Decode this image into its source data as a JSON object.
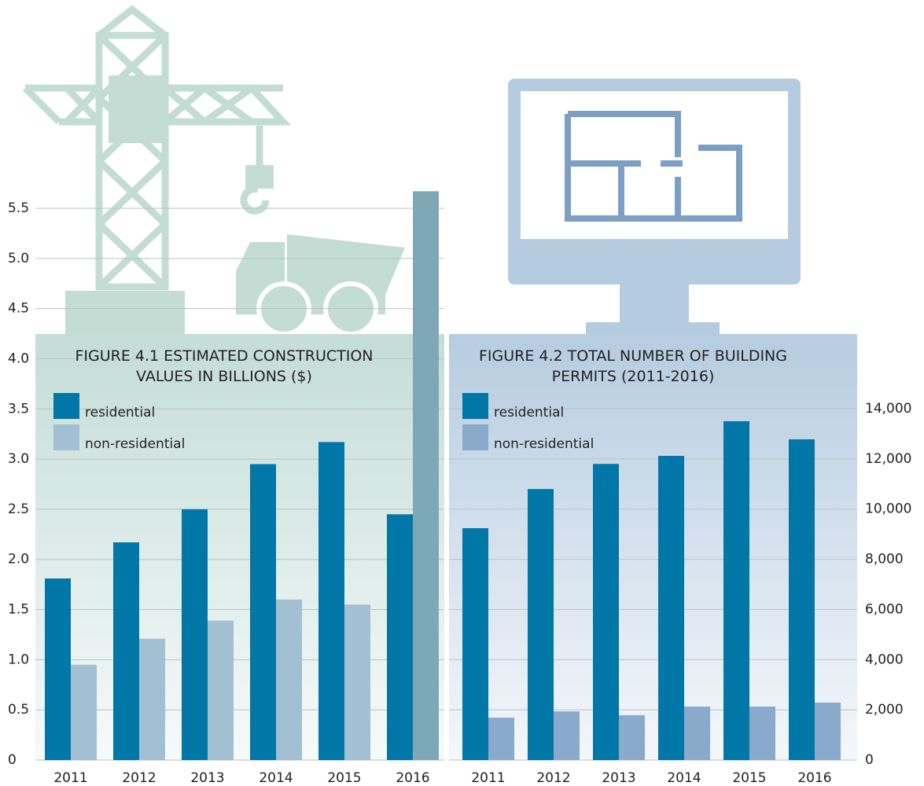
{
  "chart_data": [
    {
      "type": "bar",
      "title": "FIGURE 4.1 ESTIMATED CONSTRUCTION VALUES IN BILLIONS ($)",
      "categories": [
        "2011",
        "2012",
        "2013",
        "2014",
        "2015",
        "2016"
      ],
      "series": [
        {
          "name": "residential",
          "color": "#0077a6",
          "values": [
            1.81,
            2.17,
            2.5,
            2.95,
            3.17,
            2.45
          ]
        },
        {
          "name": "non-residential",
          "color": "#a3bfd2",
          "colors": [
            "#a3bfd2",
            "#a3bfd2",
            "#a3bfd2",
            "#a3bfd2",
            "#a3bfd2",
            "#7fa8b6"
          ],
          "values": [
            0.95,
            1.21,
            1.39,
            1.6,
            1.55,
            5.67
          ]
        }
      ],
      "ylim": [
        0,
        5.5
      ],
      "yticks": [
        0,
        0.5,
        {
          "value": 1,
          "label": "1.0"
        },
        1.5,
        {
          "value": 2,
          "label": "2.0"
        },
        2.5,
        {
          "value": 3,
          "label": "3.0"
        },
        3.5,
        {
          "value": 4,
          "label": "4.0"
        },
        4.5,
        {
          "value": 5,
          "label": "5.0"
        },
        5.5
      ],
      "y_axis_side": "left",
      "grid": true
    },
    {
      "type": "bar",
      "title": "FIGURE 4.2  TOTAL NUMBER OF BUILDING PERMITS (2011-2016)",
      "categories": [
        "2011",
        "2012",
        "2013",
        "2014",
        "2015",
        "2016"
      ],
      "series": [
        {
          "name": "residential",
          "color": "#0077a6",
          "values": [
            9240,
            10800,
            11800,
            12120,
            13500,
            12780
          ]
        },
        {
          "name": "non-residential",
          "color": "#8aaacb",
          "values": [
            1690,
            1940,
            1790,
            2130,
            2130,
            2290
          ]
        }
      ],
      "ylim": [
        0,
        14000
      ],
      "yticks": [
        0,
        {
          "value": 2000,
          "label": "2,000"
        },
        {
          "value": 4000,
          "label": "4,000"
        },
        {
          "value": 6000,
          "label": "6,000"
        },
        {
          "value": 8000,
          "label": "8,000"
        },
        {
          "value": 10000,
          "label": "10,000"
        },
        {
          "value": 12000,
          "label": "12,000"
        },
        {
          "value": 14000,
          "label": "14,000"
        }
      ],
      "y_axis_side": "right",
      "grid": true
    }
  ]
}
